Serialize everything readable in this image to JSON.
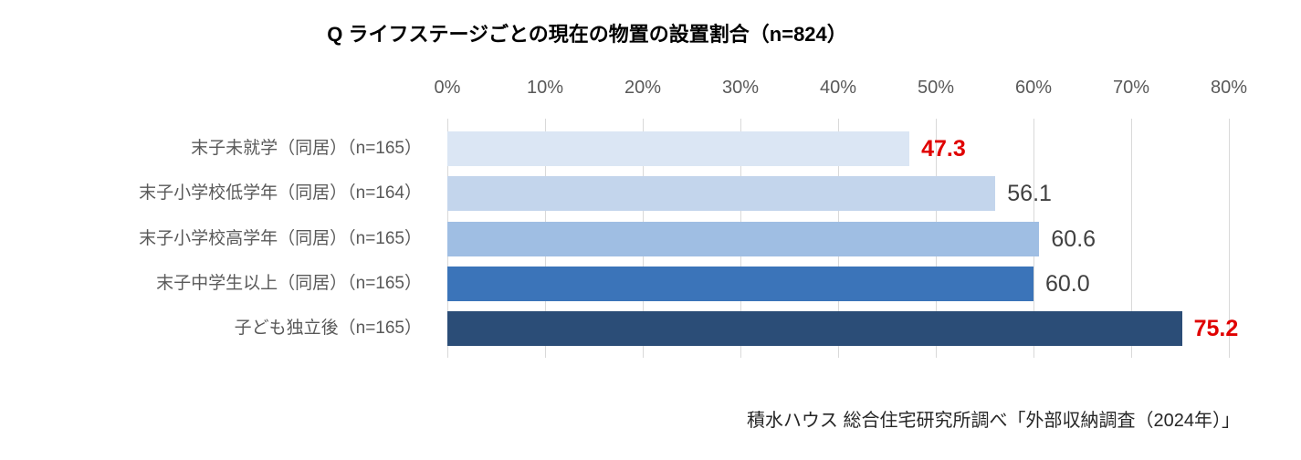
{
  "source": "積水ハウス 総合住宅研究所調べ「外部収納調査（2024年）」",
  "chart_data": {
    "type": "bar",
    "orientation": "horizontal",
    "title": "Q ライフステージごとの現在の物置の設置割合（n=824）",
    "categories": [
      "末子未就学（同居）（n=165）",
      "末子小学校低学年（同居）（n=164）",
      "末子小学校高学年（同居）（n=165）",
      "末子中学生以上（同居）（n=165）",
      "子ども独立後（n=165）"
    ],
    "values": [
      47.3,
      56.1,
      60.6,
      60.0,
      75.2
    ],
    "value_labels": [
      "47.3",
      "56.1",
      "60.6",
      "60.0",
      "75.2"
    ],
    "highlighted": [
      true,
      false,
      false,
      false,
      true
    ],
    "bar_colors": [
      "#dbe6f4",
      "#c3d5ec",
      "#9fbee3",
      "#3b74b9",
      "#2b4d77"
    ],
    "x_ticks": [
      "0%",
      "10%",
      "20%",
      "30%",
      "40%",
      "50%",
      "60%",
      "70%",
      "80%"
    ],
    "xlim": [
      0,
      80
    ],
    "axis_position": "top",
    "grid": true,
    "legend": "none",
    "colors": {
      "grid": "#d9d9d9",
      "value_normal": "#404040",
      "value_highlight": "#e00000",
      "category_label": "#595959",
      "tick_label": "#595959"
    }
  }
}
